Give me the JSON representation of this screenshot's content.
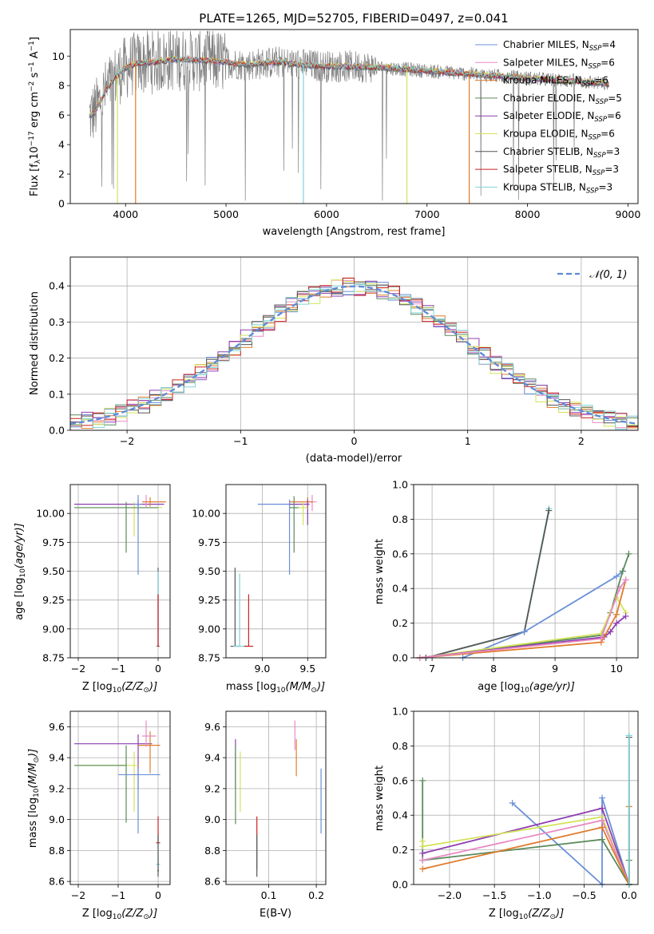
{
  "figure": {
    "title": "PLATE=1265, MJD=52705, FIBERID=0497, z=0.041"
  },
  "colors": {
    "Chabrier MILES": "#6a8fd8",
    "Salpeter MILES": "#e88bc4",
    "Kroupa MILES": "#e07b2a",
    "Chabrier ELODIE": "#5b8a5b",
    "Salpeter ELODIE": "#8e3fb0",
    "Kroupa ELODIE": "#d4e35a",
    "Chabrier STELIB": "#555555",
    "Salpeter STELIB": "#cc2222",
    "Kroupa STELIB": "#7fd3d8",
    "data": "#808080",
    "normal": "#5b8ad8"
  },
  "chart_data": [
    {
      "id": "spectrum",
      "type": "line",
      "title": "PLATE=1265, MJD=52705, FIBERID=0497, z=0.041",
      "xlabel": "wavelength [Angstrom, rest frame]",
      "ylabel_parts": [
        "Flux [f",
        "λ",
        "10",
        "−17",
        " erg cm",
        "−2",
        " s",
        "−1",
        " A",
        "−1",
        "]"
      ],
      "xlim": [
        3450,
        9100
      ],
      "ylim": [
        0,
        11.8
      ],
      "xticks": [
        4000,
        5000,
        6000,
        7000,
        8000,
        9000
      ],
      "yticks": [
        0,
        2,
        4,
        6,
        8,
        10
      ],
      "grid": false,
      "legend": {
        "placement": "top-right",
        "entries": [
          {
            "name": "Chabrier MILES",
            "n": "4"
          },
          {
            "name": "Salpeter MILES",
            "n": "6"
          },
          {
            "name": "Kroupa MILES",
            "n": "6"
          },
          {
            "name": "Chabrier ELODIE",
            "n": "5"
          },
          {
            "name": "Salpeter ELODIE",
            "n": "6"
          },
          {
            "name": "Kroupa ELODIE",
            "n": "6"
          },
          {
            "name": "Chabrier STELIB",
            "n": "3"
          },
          {
            "name": "Salpeter STELIB",
            "n": "3"
          },
          {
            "name": "Kroupa STELIB",
            "n": "3"
          }
        ]
      },
      "data_range": [
        3640,
        8810
      ],
      "model_trace": [
        [
          3640,
          5.9
        ],
        [
          3700,
          6.3
        ],
        [
          3800,
          7.6
        ],
        [
          3900,
          8.6
        ],
        [
          4000,
          9.2
        ],
        [
          4100,
          9.5
        ],
        [
          4300,
          9.6
        ],
        [
          4500,
          9.8
        ],
        [
          4800,
          9.7
        ],
        [
          5000,
          9.6
        ],
        [
          5200,
          9.4
        ],
        [
          5500,
          9.6
        ],
        [
          5800,
          9.4
        ],
        [
          6000,
          9.3
        ],
        [
          6300,
          9.3
        ],
        [
          6600,
          9.2
        ],
        [
          7000,
          9.0
        ],
        [
          7400,
          8.8
        ],
        [
          7800,
          8.6
        ],
        [
          8200,
          8.4
        ],
        [
          8500,
          8.3
        ],
        [
          8800,
          8.1
        ]
      ],
      "dropouts": [
        [
          3920,
          "Kroupa ELODIE"
        ],
        [
          4100,
          "Kroupa MILES"
        ],
        [
          5770,
          "Kroupa STELIB"
        ],
        [
          6800,
          "Kroupa ELODIE"
        ],
        [
          7420,
          "Kroupa MILES"
        ]
      ]
    },
    {
      "id": "residuals",
      "type": "histogram",
      "xlabel": "(data-model)/error",
      "ylabel": "Normed distribution",
      "xlim": [
        -2.5,
        2.5
      ],
      "ylim": [
        0,
        0.48
      ],
      "xticks": [
        -2,
        -1,
        0,
        1,
        2
      ],
      "yticks": [
        0,
        0.1,
        0.2,
        0.3,
        0.4
      ],
      "grid": true,
      "bin_width": 0.1,
      "legend": {
        "placement": "top-right",
        "label": "𝒩(0, 1)"
      },
      "reference": {
        "name": "𝒩(0, 1)",
        "mu": 0,
        "sigma": 1
      }
    },
    {
      "id": "age_vs_Z",
      "type": "errorbar",
      "xlabel_parts": [
        "Z [log",
        "10",
        "(Z/Z",
        "⊙",
        ")]"
      ],
      "ylabel_parts": [
        "age  [log",
        "10",
        "(age/yr)]"
      ],
      "xlim": [
        -2.2,
        0.3
      ],
      "ylim": [
        8.75,
        10.25
      ],
      "xticks": [
        -2,
        -1,
        0
      ],
      "yticks": [
        8.75,
        9.0,
        9.25,
        9.5,
        9.75,
        10.0
      ],
      "grid": true,
      "points": [
        {
          "model": "Salpeter ELODIE",
          "x": -0.5,
          "y": 10.08,
          "x_lo": -2.1,
          "x_hi": 0.15,
          "y_lo": 10.0,
          "y_hi": 10.12
        },
        {
          "model": "Kroupa ELODIE",
          "x": -0.6,
          "y": 10.05,
          "x_lo": -2.1,
          "x_hi": 0.1,
          "y_lo": 9.8,
          "y_hi": 10.1
        },
        {
          "model": "Chabrier ELODIE",
          "x": -0.8,
          "y": 10.05,
          "x_lo": -2.1,
          "x_hi": 0.0,
          "y_lo": 9.66,
          "y_hi": 10.1
        },
        {
          "model": "Salpeter MILES",
          "x": -0.3,
          "y": 10.1,
          "x_lo": -0.4,
          "x_hi": 0.15,
          "y_lo": 10.05,
          "y_hi": 10.16
        },
        {
          "model": "Kroupa MILES",
          "x": -0.2,
          "y": 10.1,
          "x_lo": -0.4,
          "x_hi": 0.2,
          "y_lo": 10.06,
          "y_hi": 10.14
        },
        {
          "model": "Chabrier MILES",
          "x": -0.5,
          "y": 10.08,
          "x_lo": -0.6,
          "x_hi": -0.4,
          "y_lo": 9.47,
          "y_hi": 10.16
        },
        {
          "model": "Chabrier STELIB",
          "x": 0.0,
          "y": 8.85,
          "x_lo": 0.0,
          "x_hi": 0.0,
          "y_lo": 8.85,
          "y_hi": 9.53
        },
        {
          "model": "Kroupa STELIB",
          "x": 0.0,
          "y": 8.85,
          "x_lo": -0.05,
          "x_hi": 0.05,
          "y_lo": 8.85,
          "y_hi": 9.5
        },
        {
          "model": "Salpeter STELIB",
          "x": 0.0,
          "y": 8.85,
          "x_lo": -0.03,
          "x_hi": 0.03,
          "y_lo": 8.85,
          "y_hi": 9.3
        }
      ]
    },
    {
      "id": "age_vs_mass",
      "type": "errorbar",
      "xlabel_parts": [
        "mass [log",
        "10",
        "(M/M",
        "⊙",
        ")]"
      ],
      "xlim": [
        8.6,
        9.7
      ],
      "ylim": [
        8.75,
        10.25
      ],
      "xticks": [
        9.0,
        9.5
      ],
      "yticks": [
        8.75,
        9.0,
        9.25,
        9.5,
        9.75,
        10.0
      ],
      "grid": true,
      "points": [
        {
          "model": "Chabrier MILES",
          "x": 9.3,
          "y": 10.08,
          "x_lo": 8.95,
          "x_hi": 9.4,
          "y_lo": 9.47,
          "y_hi": 10.12
        },
        {
          "model": "Salpeter MILES",
          "x": 9.55,
          "y": 10.1,
          "x_lo": 9.3,
          "x_hi": 9.6,
          "y_lo": 10.02,
          "y_hi": 10.16
        },
        {
          "model": "Kroupa MILES",
          "x": 9.5,
          "y": 10.1,
          "x_lo": 9.3,
          "x_hi": 9.56,
          "y_lo": 10.05,
          "y_hi": 10.14
        },
        {
          "model": "Salpeter ELODIE",
          "x": 9.5,
          "y": 10.08,
          "x_lo": 9.3,
          "x_hi": 9.52,
          "y_lo": 9.9,
          "y_hi": 10.12
        },
        {
          "model": "Kroupa ELODIE",
          "x": 9.45,
          "y": 10.05,
          "x_lo": 9.4,
          "x_hi": 9.5,
          "y_lo": 9.9,
          "y_hi": 10.1
        },
        {
          "model": "Chabrier ELODIE",
          "x": 9.35,
          "y": 10.05,
          "x_lo": 9.3,
          "x_hi": 9.4,
          "y_lo": 9.66,
          "y_hi": 10.15
        },
        {
          "model": "Chabrier STELIB",
          "x": 8.7,
          "y": 8.85,
          "x_lo": 8.65,
          "x_hi": 8.75,
          "y_lo": 8.85,
          "y_hi": 9.53
        },
        {
          "model": "Kroupa STELIB",
          "x": 8.75,
          "y": 8.85,
          "x_lo": 8.68,
          "x_hi": 8.85,
          "y_lo": 8.85,
          "y_hi": 9.48
        },
        {
          "model": "Salpeter STELIB",
          "x": 8.85,
          "y": 8.85,
          "x_lo": 8.8,
          "x_hi": 8.9,
          "y_lo": 8.85,
          "y_hi": 9.3
        }
      ]
    },
    {
      "id": "weight_vs_age",
      "type": "line",
      "xlabel_parts": [
        "age  [log",
        "10",
        "(age/yr)]"
      ],
      "ylabel": "mass weight",
      "xlim": [
        6.7,
        10.35
      ],
      "ylim": [
        0,
        1.0
      ],
      "xticks": [
        7,
        8,
        9,
        10
      ],
      "yticks": [
        0.0,
        0.2,
        0.4,
        0.6,
        0.8,
        1.0
      ],
      "grid": true,
      "series": [
        {
          "model": "Kroupa STELIB",
          "x": [
            6.9,
            8.5,
            8.9
          ],
          "y": [
            0.0,
            0.15,
            0.86
          ]
        },
        {
          "model": "Chabrier STELIB",
          "x": [
            6.9,
            8.5,
            8.9
          ],
          "y": [
            0.0,
            0.15,
            0.85
          ]
        },
        {
          "model": "Chabrier MILES",
          "x": [
            7.5,
            8.5,
            10.0,
            10.1
          ],
          "y": [
            0.0,
            0.15,
            0.47,
            0.5
          ]
        },
        {
          "model": "Chabrier ELODIE",
          "x": [
            6.8,
            9.75,
            9.9,
            10.1,
            10.2
          ],
          "y": [
            0.0,
            0.13,
            0.26,
            0.5,
            0.6
          ]
        },
        {
          "model": "Kroupa ELODIE",
          "x": [
            6.8,
            9.75,
            10.0,
            10.15
          ],
          "y": [
            0.0,
            0.14,
            0.35,
            0.26
          ]
        },
        {
          "model": "Salpeter ELODIE",
          "x": [
            6.8,
            9.8,
            9.9,
            10.0,
            10.15
          ],
          "y": [
            0.0,
            0.12,
            0.15,
            0.2,
            0.24
          ]
        },
        {
          "model": "Kroupa MILES",
          "x": [
            6.8,
            9.75,
            10.0,
            10.15
          ],
          "y": [
            0.0,
            0.09,
            0.25,
            0.45
          ]
        },
        {
          "model": "Salpeter MILES",
          "x": [
            6.8,
            9.75,
            10.05,
            10.15
          ],
          "y": [
            0.0,
            0.11,
            0.4,
            0.45
          ]
        }
      ]
    },
    {
      "id": "mass_vs_Z",
      "type": "errorbar",
      "xlabel_parts": [
        "Z [log",
        "10",
        "(Z/Z",
        "⊙",
        ")]"
      ],
      "ylabel_parts": [
        "mass [log",
        "10",
        "(M/M",
        "⊙",
        ")]"
      ],
      "xlim": [
        -2.2,
        0.3
      ],
      "ylim": [
        8.58,
        9.7
      ],
      "xticks": [
        -2,
        -1,
        0
      ],
      "yticks": [
        8.6,
        8.8,
        9.0,
        9.2,
        9.4,
        9.6
      ],
      "grid": true,
      "points": [
        {
          "model": "Salpeter ELODIE",
          "x": -0.5,
          "y": 9.49,
          "x_lo": -2.1,
          "x_hi": -0.15,
          "y_lo": 9.2,
          "y_hi": 9.55
        },
        {
          "model": "Kroupa ELODIE",
          "x": -0.6,
          "y": 9.35,
          "x_lo": -2.1,
          "x_hi": -0.5,
          "y_lo": 9.05,
          "y_hi": 9.44
        },
        {
          "model": "Chabrier ELODIE",
          "x": -0.8,
          "y": 9.35,
          "x_lo": -2.1,
          "x_hi": -0.8,
          "y_lo": 8.98,
          "y_hi": 9.48
        },
        {
          "model": "Kroupa MILES",
          "x": -0.2,
          "y": 9.48,
          "x_lo": -0.5,
          "x_hi": 0.05,
          "y_lo": 9.3,
          "y_hi": 9.57
        },
        {
          "model": "Salpeter MILES",
          "x": -0.3,
          "y": 9.54,
          "x_lo": -0.4,
          "x_hi": -0.05,
          "y_lo": 9.47,
          "y_hi": 9.64
        },
        {
          "model": "Chabrier MILES",
          "x": -0.5,
          "y": 9.29,
          "x_lo": -1.0,
          "x_hi": 0.05,
          "y_lo": 8.91,
          "y_hi": 9.33
        },
        {
          "model": "Salpeter STELIB",
          "x": 0.0,
          "y": 8.85,
          "x_lo": -0.05,
          "x_hi": 0.05,
          "y_lo": 8.84,
          "y_hi": 9.02
        },
        {
          "model": "Kroupa STELIB",
          "x": 0.0,
          "y": 8.71,
          "x_lo": -0.05,
          "x_hi": 0.05,
          "y_lo": 8.68,
          "y_hi": 8.9
        },
        {
          "model": "Chabrier STELIB",
          "x": 0.0,
          "y": 8.67,
          "x_lo": -0.02,
          "x_hi": 0.02,
          "y_lo": 8.63,
          "y_hi": 8.9
        }
      ]
    },
    {
      "id": "mass_vs_EBV",
      "type": "errorbar",
      "xlabel": "E(B-V)",
      "xlim": [
        0.01,
        0.22
      ],
      "ylim": [
        8.58,
        9.7
      ],
      "xticks": [
        0.1,
        0.2
      ],
      "yticks": [
        8.6,
        8.8,
        9.0,
        9.2,
        9.4,
        9.6
      ],
      "grid": true,
      "points": [
        {
          "model": "Salpeter ELODIE",
          "x": 0.03,
          "y": 9.35,
          "x_lo": 0.03,
          "x_hi": 0.03,
          "y_lo": 9.2,
          "y_hi": 9.52
        },
        {
          "model": "Chabrier ELODIE",
          "x": 0.03,
          "y": 9.2,
          "x_lo": 0.03,
          "x_hi": 0.03,
          "y_lo": 8.97,
          "y_hi": 9.48
        },
        {
          "model": "Kroupa ELODIE",
          "x": 0.04,
          "y": 9.27,
          "x_lo": 0.04,
          "x_hi": 0.04,
          "y_lo": 9.05,
          "y_hi": 9.44
        },
        {
          "model": "Salpeter MILES",
          "x": 0.155,
          "y": 9.55,
          "x_lo": 0.155,
          "x_hi": 0.155,
          "y_lo": 9.45,
          "y_hi": 9.64
        },
        {
          "model": "Kroupa MILES",
          "x": 0.158,
          "y": 9.4,
          "x_lo": 0.158,
          "x_hi": 0.158,
          "y_lo": 9.28,
          "y_hi": 9.52
        },
        {
          "model": "Chabrier MILES",
          "x": 0.21,
          "y": 9.12,
          "x_lo": 0.21,
          "x_hi": 0.21,
          "y_lo": 8.91,
          "y_hi": 9.33
        },
        {
          "model": "Salpeter STELIB",
          "x": 0.075,
          "y": 8.85,
          "x_lo": 0.075,
          "x_hi": 0.075,
          "y_lo": 8.68,
          "y_hi": 9.02
        },
        {
          "model": "Kroupa STELIB",
          "x": 0.075,
          "y": 8.75,
          "x_lo": 0.075,
          "x_hi": 0.075,
          "y_lo": 8.68,
          "y_hi": 8.9
        },
        {
          "model": "Chabrier STELIB",
          "x": 0.075,
          "y": 8.7,
          "x_lo": 0.075,
          "x_hi": 0.075,
          "y_lo": 8.63,
          "y_hi": 8.9
        }
      ]
    },
    {
      "id": "weight_vs_Z",
      "type": "line",
      "xlabel_parts": [
        "Z [log",
        "10",
        "(Z/Z",
        "⊙",
        ")]"
      ],
      "ylabel": "mass weight",
      "xlim": [
        -2.4,
        0.1
      ],
      "ylim": [
        0,
        1.0
      ],
      "xticks": [
        -2.0,
        -1.5,
        -1.0,
        -0.5,
        0.0
      ],
      "yticks": [
        0.0,
        0.2,
        0.4,
        0.6,
        0.8,
        1.0
      ],
      "grid": true,
      "series": [
        {
          "model": "Chabrier MILES",
          "x": [
            -1.3,
            -0.3,
            -0.3,
            0.0
          ],
          "y": [
            0.47,
            0.0,
            0.5,
            0.0
          ]
        },
        {
          "model": "Chabrier ELODIE",
          "x": [
            -2.3,
            -2.3,
            -0.3,
            0.0,
            0.0
          ],
          "y": [
            0.6,
            0.14,
            0.26,
            0.0,
            0.14
          ]
        },
        {
          "model": "Salpeter ELODIE",
          "x": [
            -2.3,
            -0.3,
            0.0
          ],
          "y": [
            0.18,
            0.44,
            0.0
          ]
        },
        {
          "model": "Kroupa ELODIE",
          "x": [
            -2.3,
            -2.3,
            -0.3,
            0.0
          ],
          "y": [
            0.25,
            0.22,
            0.39,
            0.0
          ]
        },
        {
          "model": "Salpeter MILES",
          "x": [
            -2.3,
            -0.3,
            0.0
          ],
          "y": [
            0.14,
            0.37,
            0.0
          ]
        },
        {
          "model": "Kroupa MILES",
          "x": [
            -2.3,
            -0.3,
            0.0,
            0.0
          ],
          "y": [
            0.09,
            0.33,
            0.0,
            0.45
          ]
        },
        {
          "model": "Chabrier STELIB",
          "x": [
            0.0,
            0.0
          ],
          "y": [
            0.0,
            0.85
          ]
        },
        {
          "model": "Kroupa STELIB",
          "x": [
            0.0,
            0.0
          ],
          "y": [
            0.0,
            0.86
          ]
        }
      ]
    }
  ]
}
